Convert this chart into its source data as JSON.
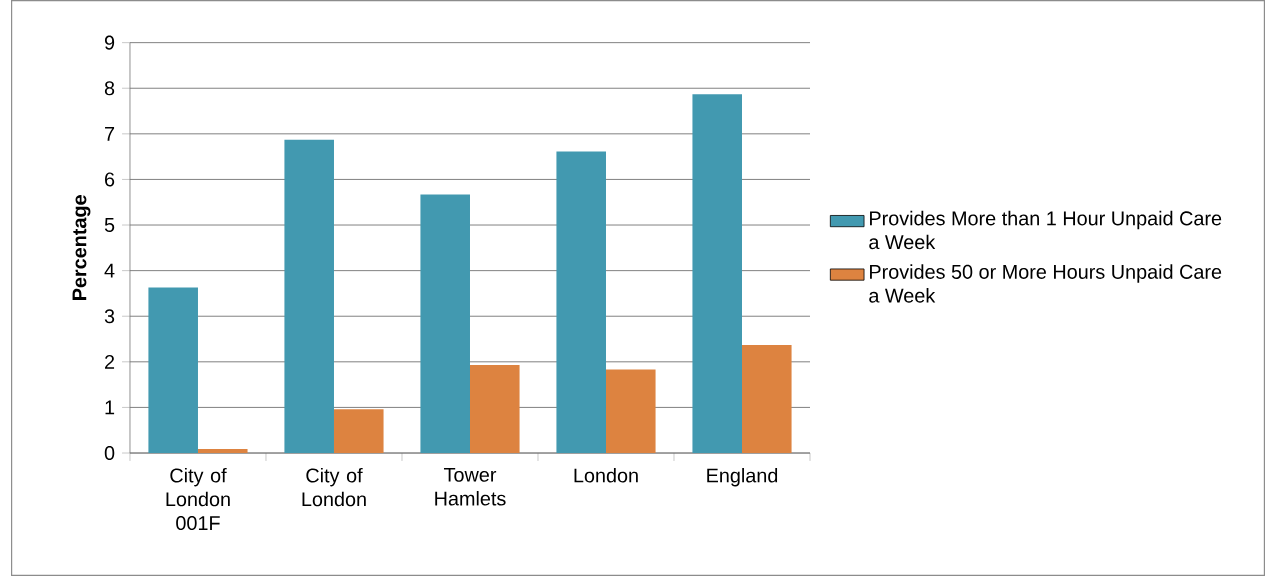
{
  "chart_data": {
    "type": "bar",
    "ylabel": "Percentage",
    "categories": [
      "City of London 001F",
      "City of London",
      "Tower Hamlets",
      "London",
      "England"
    ],
    "series": [
      {
        "name": "Provides More than 1 Hour Unpaid Care a Week",
        "color": "#4299b0",
        "values": [
          3.63,
          6.87,
          5.67,
          6.61,
          7.87
        ]
      },
      {
        "name": "Provides 50 or More Hours Unpaid Care a Week",
        "color": "#dd8340",
        "values": [
          0.09,
          0.96,
          1.93,
          1.83,
          2.37
        ]
      }
    ],
    "ylim": [
      0,
      9
    ],
    "yticks": [
      0,
      1,
      2,
      3,
      4,
      5,
      6,
      7,
      8,
      9
    ],
    "grid": "y",
    "legend": "right"
  }
}
